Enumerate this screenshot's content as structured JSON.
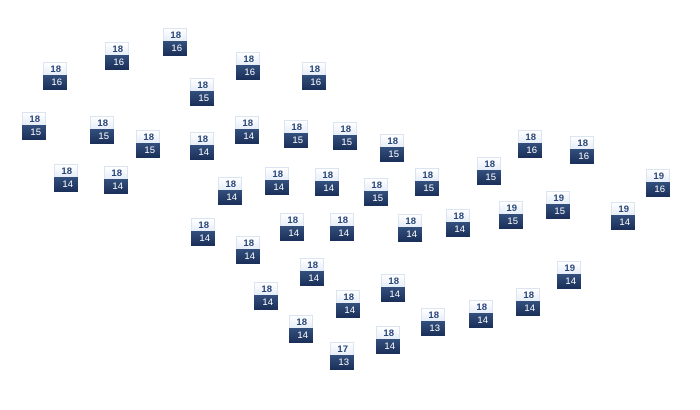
{
  "stations": [
    {
      "high": "18",
      "low": "16"
    },
    {
      "high": "18",
      "low": "16"
    },
    {
      "high": "18",
      "low": "16"
    },
    {
      "high": "18",
      "low": "16"
    },
    {
      "high": "18",
      "low": "16"
    },
    {
      "high": "18",
      "low": "15"
    },
    {
      "high": "18",
      "low": "15"
    },
    {
      "high": "18",
      "low": "15"
    },
    {
      "high": "18",
      "low": "15"
    },
    {
      "high": "18",
      "low": "14"
    },
    {
      "high": "18",
      "low": "14"
    },
    {
      "high": "18",
      "low": "15"
    },
    {
      "high": "18",
      "low": "15"
    },
    {
      "high": "18",
      "low": "15"
    },
    {
      "high": "18",
      "low": "16"
    },
    {
      "high": "18",
      "low": "16"
    },
    {
      "high": "18",
      "low": "14"
    },
    {
      "high": "18",
      "low": "14"
    },
    {
      "high": "18",
      "low": "14"
    },
    {
      "high": "18",
      "low": "14"
    },
    {
      "high": "18",
      "low": "14"
    },
    {
      "high": "18",
      "low": "15"
    },
    {
      "high": "18",
      "low": "15"
    },
    {
      "high": "18",
      "low": "15"
    },
    {
      "high": "19",
      "low": "16"
    },
    {
      "high": "19",
      "low": "15"
    },
    {
      "high": "19",
      "low": "15"
    },
    {
      "high": "19",
      "low": "14"
    },
    {
      "high": "18",
      "low": "14"
    },
    {
      "high": "18",
      "low": "14"
    },
    {
      "high": "18",
      "low": "14"
    },
    {
      "high": "18",
      "low": "14"
    },
    {
      "high": "18",
      "low": "14"
    },
    {
      "high": "18",
      "low": "14"
    },
    {
      "high": "18",
      "low": "14"
    },
    {
      "high": "18",
      "low": "14"
    },
    {
      "high": "18",
      "low": "14"
    },
    {
      "high": "18",
      "low": "14"
    },
    {
      "high": "19",
      "low": "14"
    },
    {
      "high": "18",
      "low": "14"
    },
    {
      "high": "18",
      "low": "14"
    },
    {
      "high": "18",
      "low": "13"
    },
    {
      "high": "18",
      "low": "14"
    },
    {
      "high": "18",
      "low": "14"
    },
    {
      "high": "17",
      "low": "13"
    }
  ]
}
